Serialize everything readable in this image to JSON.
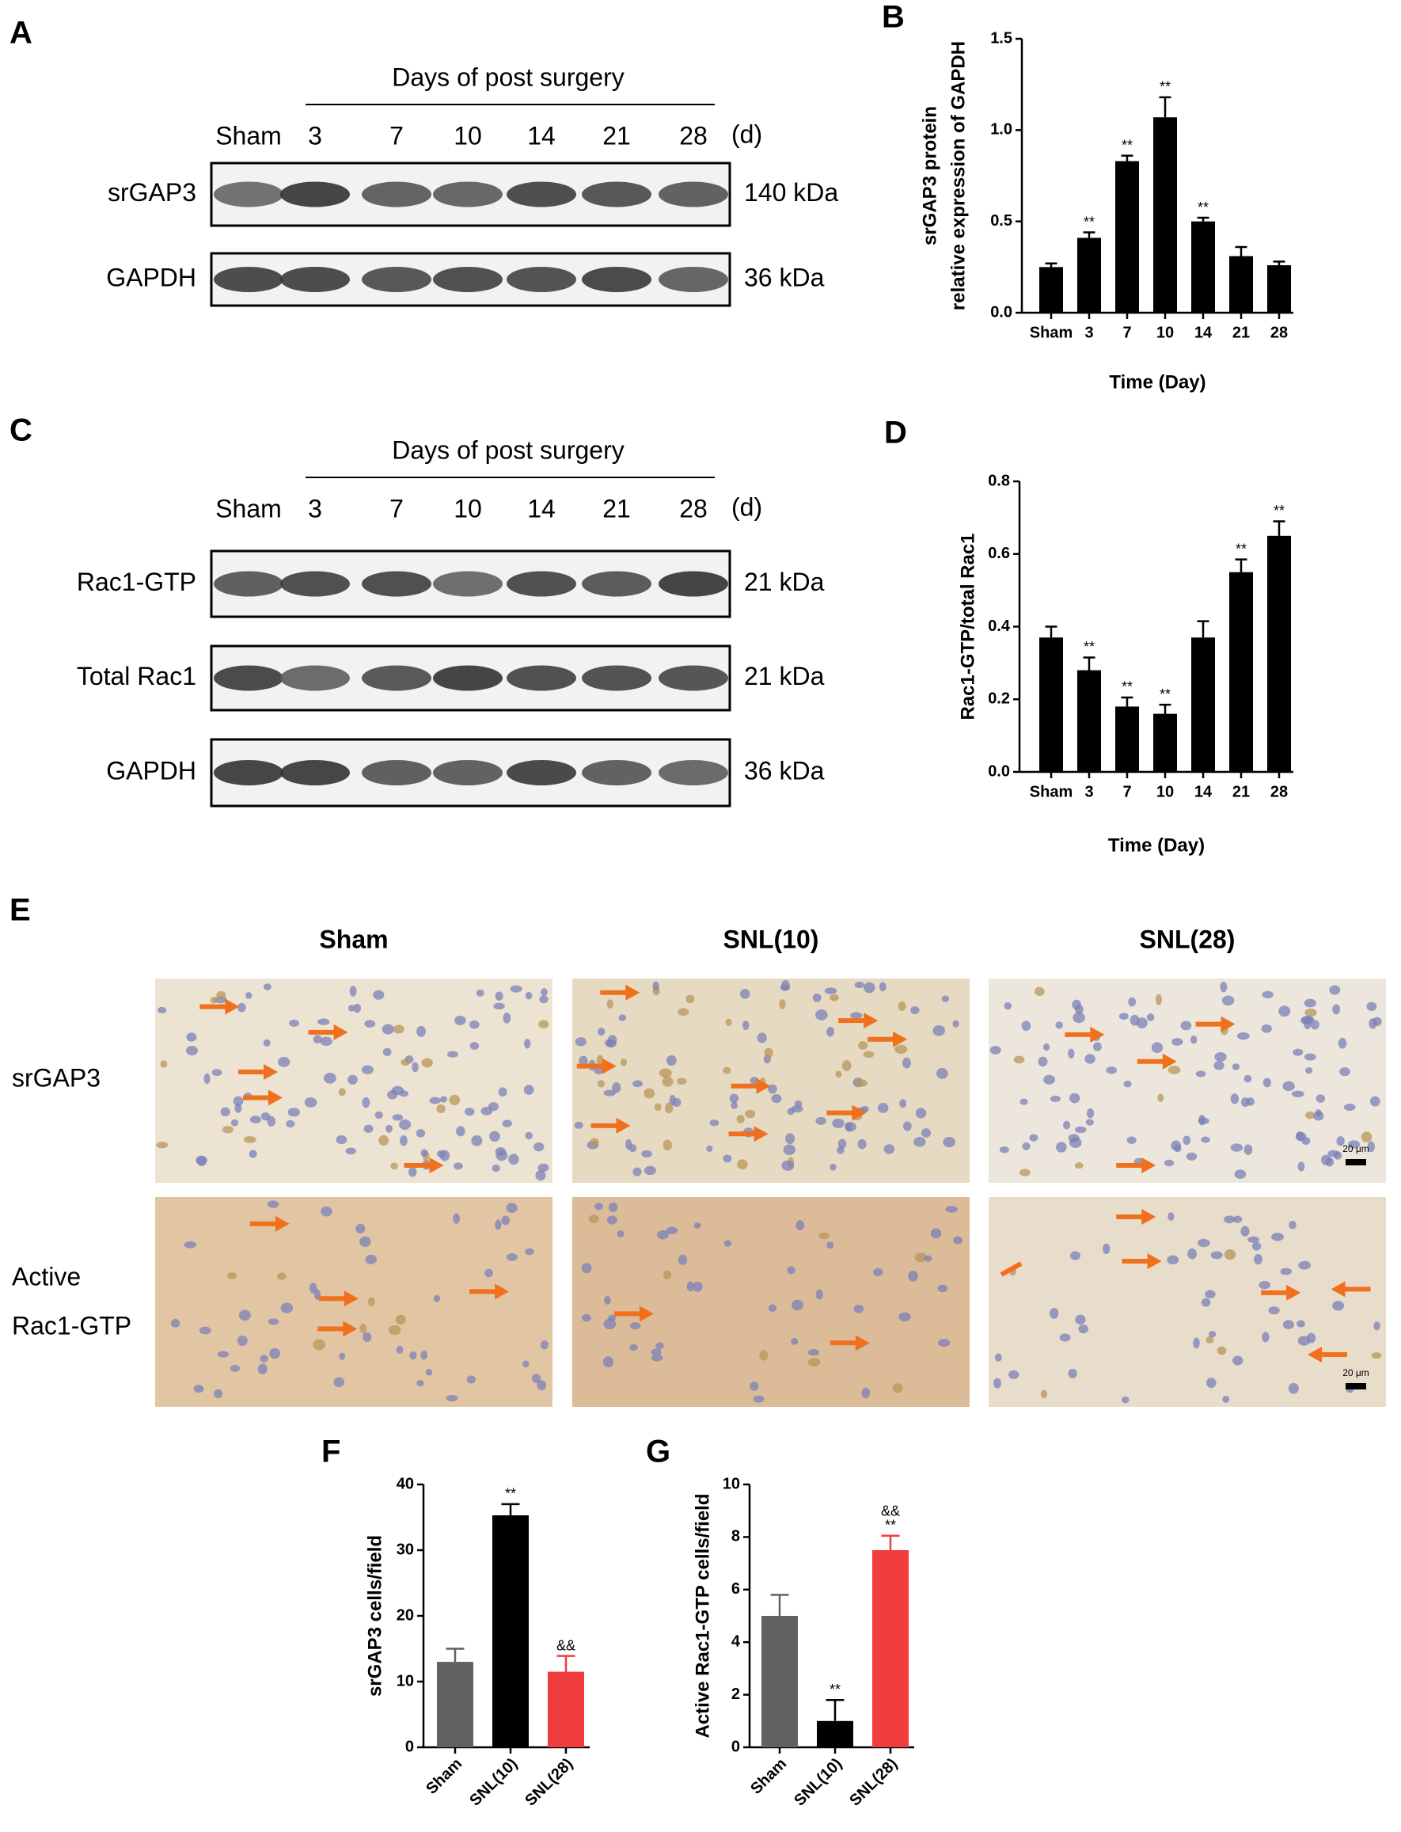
{
  "panel_letters": [
    "A",
    "B",
    "C",
    "D",
    "E",
    "F",
    "G"
  ],
  "blot_A": {
    "header": "Days of post surgery",
    "lanes": [
      "Sham",
      "3",
      "7",
      "10",
      "14",
      "21",
      "28"
    ],
    "unit": "(d)",
    "rows": [
      {
        "name": "srGAP3",
        "size": "140 kDa"
      },
      {
        "name": "GAPDH",
        "size": "36 kDa"
      }
    ]
  },
  "blot_C": {
    "header": "Days of post surgery",
    "lanes": [
      "Sham",
      "3",
      "7",
      "10",
      "14",
      "21",
      "28"
    ],
    "unit": "(d)",
    "rows": [
      {
        "name": "Rac1-GTP",
        "size": "21 kDa"
      },
      {
        "name": "Total Rac1",
        "size": "21 kDa"
      },
      {
        "name": "GAPDH",
        "size": "36 kDa"
      }
    ]
  },
  "ihc": {
    "columns": [
      "Sham",
      "SNL(10)",
      "SNL(28)"
    ],
    "rows": [
      [
        "srGAP3"
      ],
      [
        "Active",
        "Rac1-GTP"
      ]
    ],
    "scale_bar": "20 μm"
  },
  "chart_data": [
    {
      "type": "bar",
      "ylabel": [
        "srGAP3 protein",
        "relative expression of GAPDH"
      ],
      "xlabel": "Time (Day)",
      "categories": [
        "Sham",
        "3",
        "7",
        "10",
        "14",
        "21",
        "28"
      ],
      "values": [
        0.25,
        0.41,
        0.83,
        1.07,
        0.5,
        0.31,
        0.26
      ],
      "errors": [
        0.02,
        0.03,
        0.03,
        0.11,
        0.02,
        0.05,
        0.02
      ],
      "annotations": [
        null,
        [
          "**"
        ],
        [
          "**"
        ],
        [
          "**"
        ],
        [
          "**"
        ],
        null,
        null
      ],
      "color": "#000000",
      "ylim": [
        0,
        1.5
      ],
      "yticks": [
        {
          "value": 0,
          "label": "0.0"
        },
        0.5,
        {
          "value": 1,
          "label": "1.0"
        },
        1.5
      ]
    },
    {
      "type": "bar",
      "ylabel": [
        "Rac1-GTP/total Rac1"
      ],
      "xlabel": "Time (Day)",
      "categories": [
        "Sham",
        "3",
        "7",
        "10",
        "14",
        "21",
        "28"
      ],
      "values": [
        0.37,
        0.28,
        0.18,
        0.16,
        0.37,
        0.55,
        0.65
      ],
      "errors": [
        0.03,
        0.035,
        0.025,
        0.025,
        0.045,
        0.035,
        0.04
      ],
      "annotations": [
        null,
        [
          "**"
        ],
        [
          "**"
        ],
        [
          "**"
        ],
        null,
        [
          "**"
        ],
        [
          "**"
        ]
      ],
      "color": "#000000",
      "ylim": [
        0,
        0.8
      ],
      "yticks": [
        {
          "value": 0,
          "label": "0.0"
        },
        0.2,
        0.4,
        0.6,
        0.8
      ]
    },
    {
      "type": "bar",
      "ylabel": [
        "srGAP3 cells/field"
      ],
      "categories": [
        "Sham",
        "SNL(10)",
        "SNL(28)"
      ],
      "values": [
        13,
        35.3,
        11.5
      ],
      "errors": [
        2,
        1.7,
        2.4
      ],
      "annotations": [
        null,
        [
          "**"
        ],
        [
          "&&"
        ]
      ],
      "colors": [
        "#616161",
        "#000000",
        "#f03c3c"
      ],
      "ylim": [
        0,
        40
      ],
      "yticks": [
        0,
        10,
        20,
        30,
        40
      ],
      "x_tick_rotation": -45
    },
    {
      "type": "bar",
      "ylabel": [
        "Active Rac1-GTP cells/field"
      ],
      "categories": [
        "Sham",
        "SNL(10)",
        "SNL(28)"
      ],
      "values": [
        5,
        1,
        7.5
      ],
      "errors": [
        0.8,
        0.8,
        0.55
      ],
      "annotations": [
        null,
        [
          "**"
        ],
        [
          "&&",
          "**"
        ]
      ],
      "colors": [
        "#616161",
        "#000000",
        "#f03c3c"
      ],
      "ylim": [
        0,
        10
      ],
      "yticks": [
        0,
        2,
        4,
        6,
        8,
        10
      ],
      "x_tick_rotation": -45
    }
  ]
}
